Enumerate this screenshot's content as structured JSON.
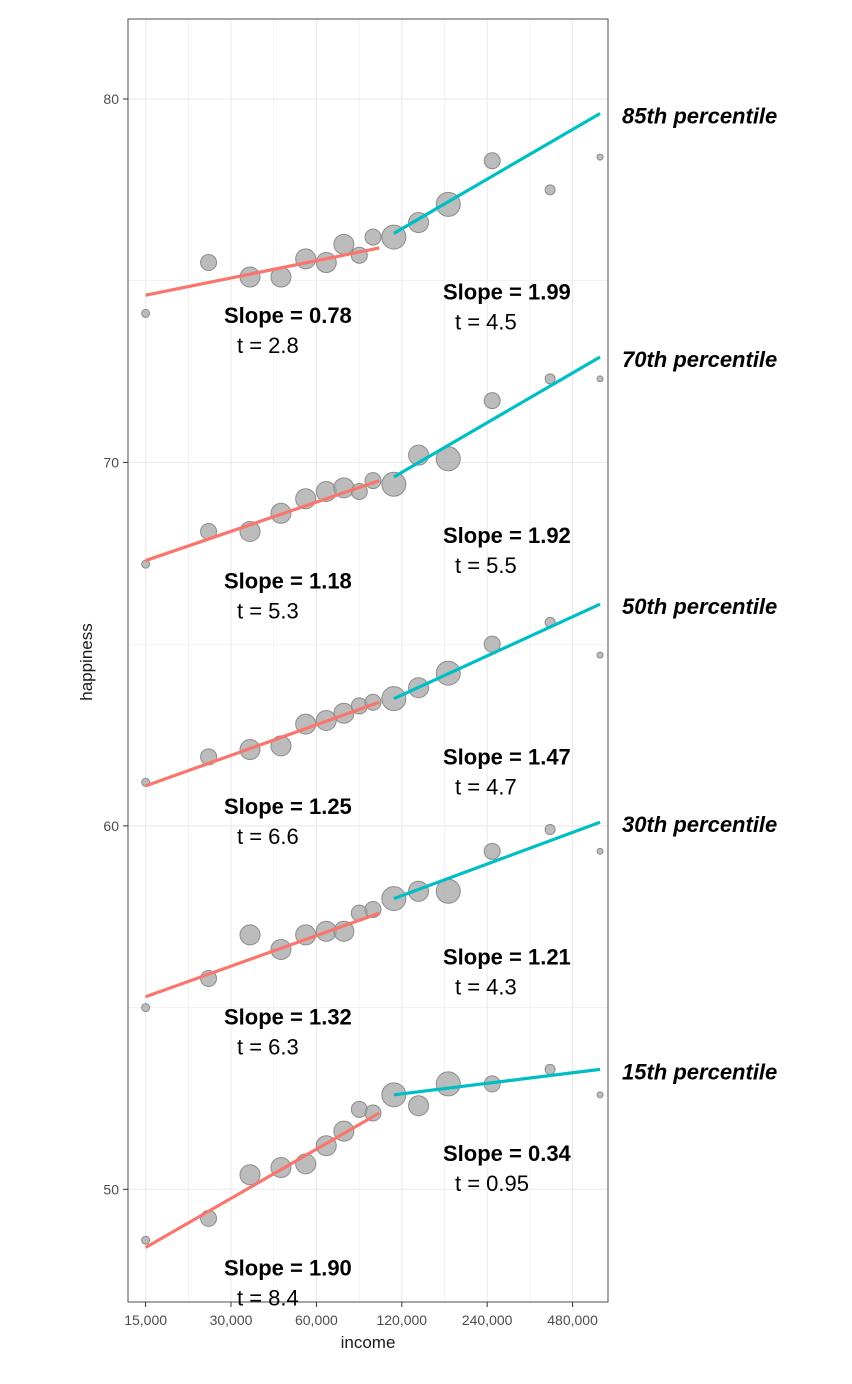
{
  "chart_data": {
    "type": "scatter",
    "title": "",
    "xlabel": "income",
    "ylabel": "happiness",
    "x_scale": "log",
    "xlim": [
      13000,
      640000
    ],
    "ylim": [
      46.9,
      82.2
    ],
    "x_ticks": [
      15000,
      30000,
      60000,
      120000,
      240000,
      480000
    ],
    "x_tick_labels": [
      "15,000",
      "30,000",
      "60,000",
      "120,000",
      "240,000",
      "480,000"
    ],
    "y_ticks": [
      50,
      60,
      70,
      80
    ],
    "y_tick_labels": [
      "50",
      "60",
      "70",
      "80"
    ],
    "grid": true,
    "colors": {
      "low_fit": "#f8766d",
      "high_fit": "#00bfc4",
      "points": "#a6a6a6",
      "point_edge": "#8c8c8c",
      "grid": "#ebebeb",
      "panel_border": "#4d4d4d"
    },
    "x": [
      15000,
      25000,
      35000,
      45000,
      55000,
      65000,
      75000,
      85000,
      95000,
      112500,
      137500,
      175000,
      250000,
      400000,
      600000
    ],
    "point_sizes": [
      4,
      8,
      10,
      10,
      10,
      10,
      10,
      8,
      8,
      12,
      10,
      12,
      8,
      5,
      3
    ],
    "series": [
      {
        "name": "15th percentile",
        "values": [
          48.6,
          49.2,
          50.4,
          50.6,
          50.7,
          51.2,
          51.6,
          52.2,
          52.1,
          52.6,
          52.3,
          52.9,
          52.9,
          53.3,
          52.6
        ],
        "low_fit": {
          "x": [
            15000,
            100000
          ],
          "y": [
            48.4,
            52.1
          ],
          "slope_label": "Slope = 1.90",
          "t_label": "t = 8.4"
        },
        "high_fit": {
          "x": [
            112500,
            600000
          ],
          "y": [
            52.6,
            53.3
          ],
          "slope_label": "Slope = 0.34",
          "t_label": "t = 0.95"
        }
      },
      {
        "name": "30th percentile",
        "values": [
          55.0,
          55.8,
          57.0,
          56.6,
          57.0,
          57.1,
          57.1,
          57.6,
          57.7,
          58.0,
          58.2,
          58.2,
          59.3,
          59.9,
          59.3
        ],
        "low_fit": {
          "x": [
            15000,
            100000
          ],
          "y": [
            55.3,
            57.6
          ],
          "slope_label": "Slope = 1.32",
          "t_label": "t = 6.3"
        },
        "high_fit": {
          "x": [
            112500,
            600000
          ],
          "y": [
            58.0,
            60.1
          ],
          "slope_label": "Slope = 1.21",
          "t_label": "t = 4.3"
        }
      },
      {
        "name": "50th percentile",
        "values": [
          61.2,
          61.9,
          62.1,
          62.2,
          62.8,
          62.9,
          63.1,
          63.3,
          63.4,
          63.5,
          63.8,
          64.2,
          65.0,
          65.6,
          64.7
        ],
        "low_fit": {
          "x": [
            15000,
            100000
          ],
          "y": [
            61.1,
            63.4
          ],
          "slope_label": "Slope = 1.25",
          "t_label": "t = 6.6"
        },
        "high_fit": {
          "x": [
            112500,
            600000
          ],
          "y": [
            63.5,
            66.1
          ],
          "slope_label": "Slope = 1.47",
          "t_label": "t = 4.7"
        }
      },
      {
        "name": "70th percentile",
        "values": [
          67.2,
          68.1,
          68.1,
          68.6,
          69.0,
          69.2,
          69.3,
          69.2,
          69.5,
          69.4,
          70.2,
          70.1,
          71.7,
          72.3,
          72.3
        ],
        "low_fit": {
          "x": [
            15000,
            100000
          ],
          "y": [
            67.3,
            69.5
          ],
          "slope_label": "Slope = 1.18",
          "t_label": "t = 5.3"
        },
        "high_fit": {
          "x": [
            112500,
            600000
          ],
          "y": [
            69.6,
            72.9
          ],
          "slope_label": "Slope = 1.92",
          "t_label": "t = 5.5"
        }
      },
      {
        "name": "85th percentile",
        "values": [
          74.1,
          75.5,
          75.1,
          75.1,
          75.6,
          75.5,
          76.0,
          75.7,
          76.2,
          76.2,
          76.6,
          77.1,
          78.3,
          77.5,
          78.4
        ],
        "low_fit": {
          "x": [
            15000,
            100000
          ],
          "y": [
            74.6,
            75.9
          ],
          "slope_label": "Slope = 0.78",
          "t_label": "t = 2.8"
        },
        "high_fit": {
          "x": [
            112500,
            600000
          ],
          "y": [
            76.3,
            79.6
          ],
          "slope_label": "Slope = 1.99",
          "t_label": "t = 4.5"
        }
      }
    ]
  }
}
